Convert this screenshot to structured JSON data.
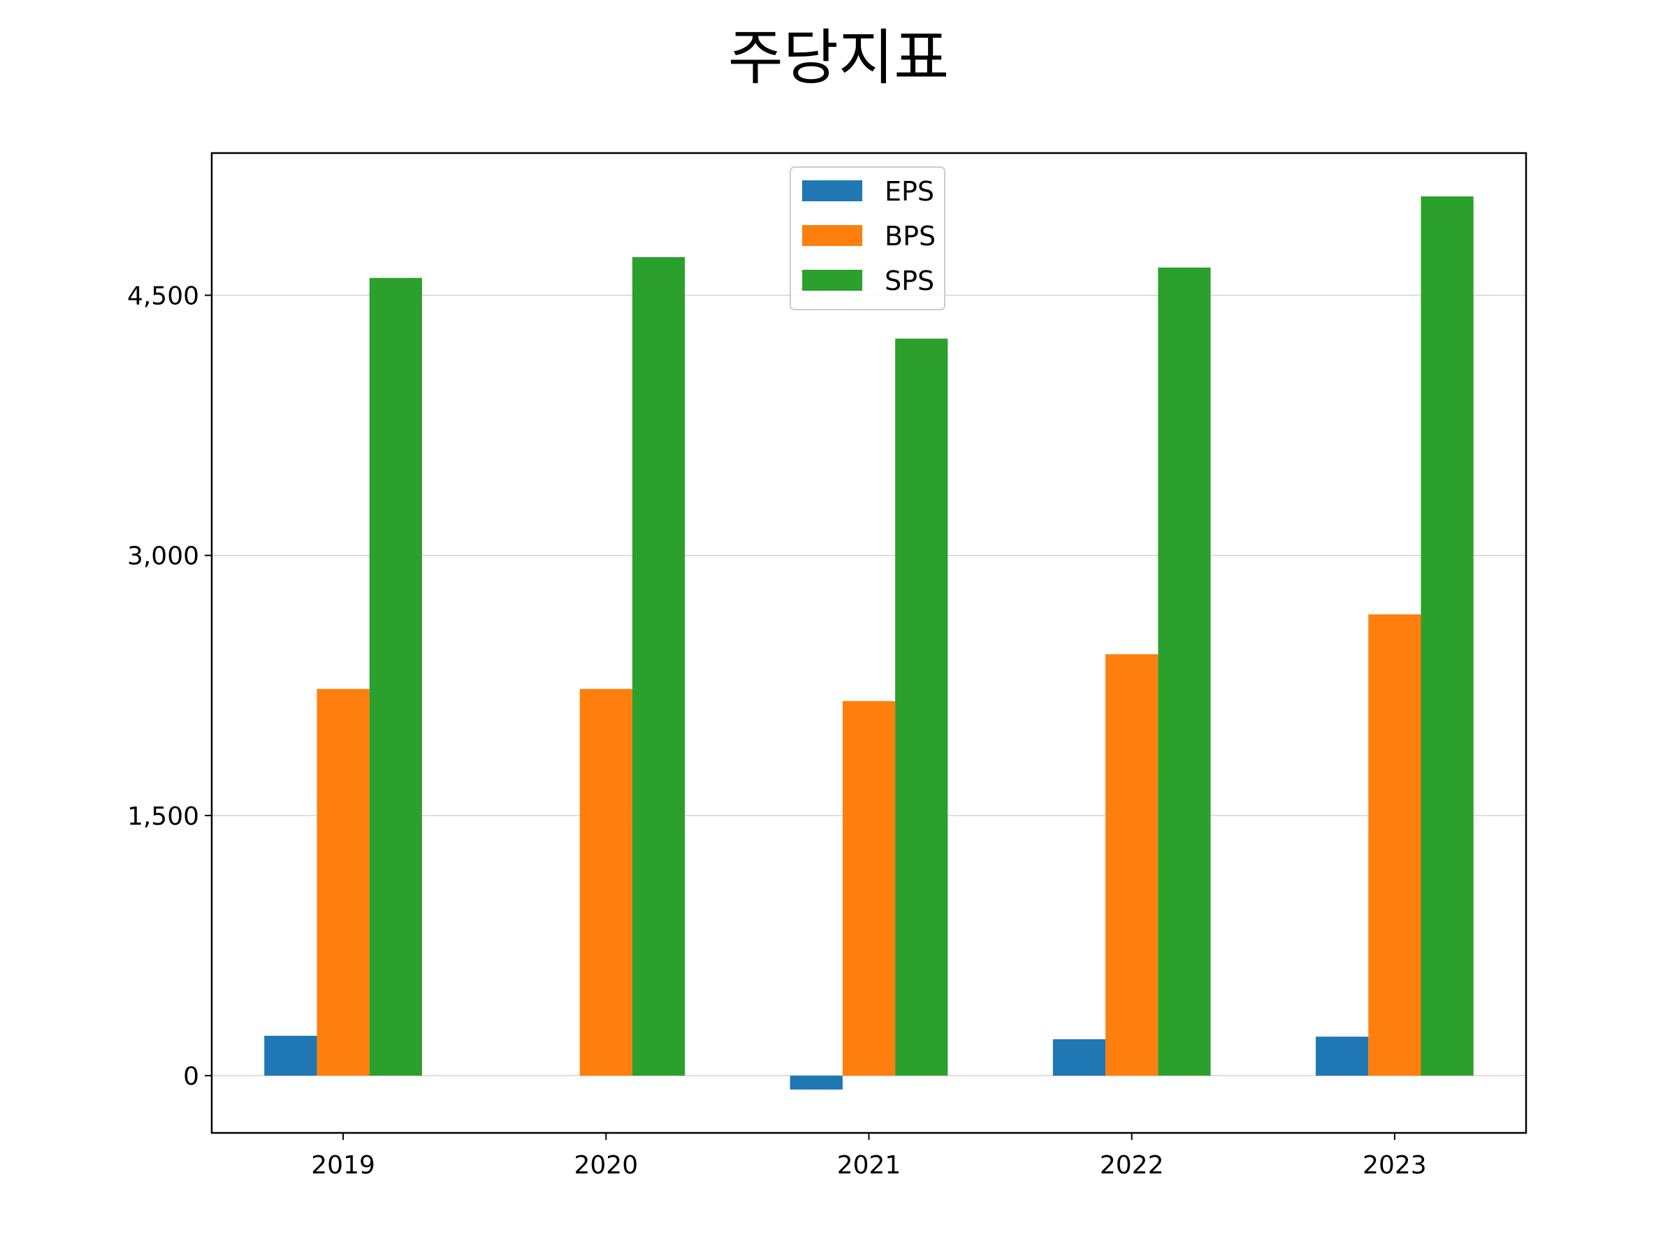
{
  "chart_data": {
    "type": "bar",
    "title": "주당지표",
    "xlabel": "",
    "ylabel": "",
    "categories": [
      "2019",
      "2020",
      "2021",
      "2022",
      "2023"
    ],
    "series": [
      {
        "name": "EPS",
        "color": "#1f77b4",
        "values": [
          230,
          0,
          -80,
          210,
          225
        ]
      },
      {
        "name": "BPS",
        "color": "#ff7f0e",
        "values": [
          2230,
          2230,
          2160,
          2430,
          2660
        ]
      },
      {
        "name": "SPS",
        "color": "#2ca02c",
        "values": [
          4600,
          4720,
          4250,
          4660,
          5070
        ]
      }
    ],
    "yticks": [
      0,
      1500,
      3000,
      4500
    ],
    "ytick_labels": [
      "0",
      "1,500",
      "3,000",
      "4,500"
    ],
    "ylim": [
      -330,
      5320
    ],
    "grid": "horizontal",
    "legend_position": "top-center"
  }
}
